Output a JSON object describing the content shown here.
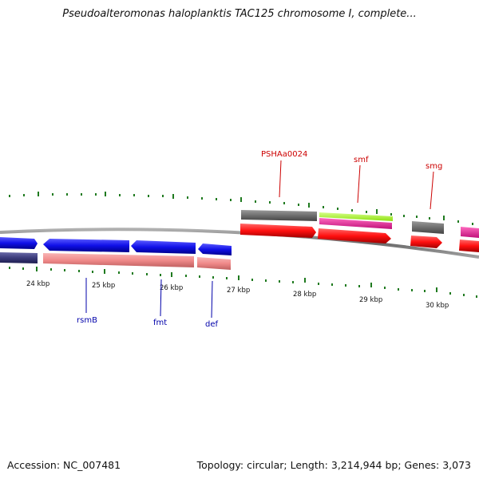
{
  "title": "Pseudoalteromonas haloplanktis TAC125 chromosome I, complete...",
  "footer": {
    "accession": "Accession: NC_007481",
    "topology": "Topology: circular; Length: 3,214,944 bp; Genes: 3,073"
  },
  "colors": {
    "backbone": "#808080",
    "tick": "#1f7a1f",
    "cds_blue": "#1010e8",
    "cds_red": "#ff1010",
    "gene_gray": "#6e6e6e",
    "navy": "#3b3b7a",
    "salmon": "#f08a8a",
    "lime": "#a6ff2e",
    "magenta": "#e8198f",
    "label_red": "#cc0000",
    "label_blue": "#0000aa"
  },
  "ticks": [
    {
      "label": "24 kbp"
    },
    {
      "label": "25 kbp"
    },
    {
      "label": "26 kbp"
    },
    {
      "label": "27 kbp"
    },
    {
      "label": "28 kbp"
    },
    {
      "label": "29 kbp"
    },
    {
      "label": "30 kbp"
    }
  ],
  "genes_top": [
    {
      "name": "PSHAa0024"
    },
    {
      "name": "smf"
    },
    {
      "name": "smg"
    }
  ],
  "genes_bottom": [
    {
      "name": "rsmB"
    },
    {
      "name": "fmt"
    },
    {
      "name": "def"
    }
  ]
}
